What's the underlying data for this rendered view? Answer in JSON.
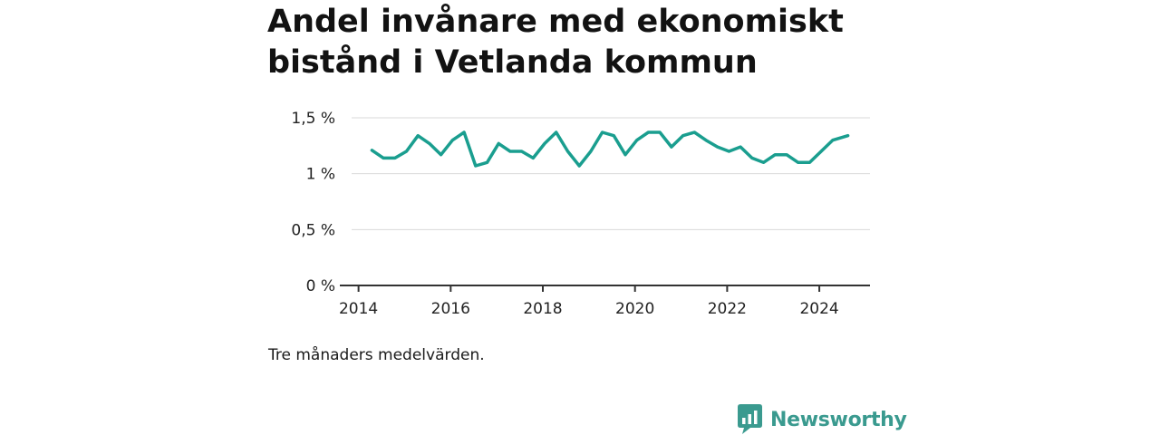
{
  "title": "Andel invånare med ekonomiskt bistånd i Vetlanda kommun",
  "caption": "Tre månaders medelvärden.",
  "brand": {
    "name": "Newsworthy",
    "color": "#3a9a8f"
  },
  "colors": {
    "line": "#1a9e8f",
    "grid": "#d9d9d9",
    "axis": "#333333"
  },
  "chart_data": {
    "type": "line",
    "title": "Andel invånare med ekonomiskt bistånd i Vetlanda kommun",
    "xlabel": "",
    "ylabel": "",
    "xlim": [
      2013.85,
      2025.1
    ],
    "ylim": [
      0,
      1.5
    ],
    "x_ticks": [
      {
        "value": 2014,
        "label": "2014"
      },
      {
        "value": 2016,
        "label": "2016"
      },
      {
        "value": 2018,
        "label": "2018"
      },
      {
        "value": 2020,
        "label": "2020"
      },
      {
        "value": 2022,
        "label": "2022"
      },
      {
        "value": 2024,
        "label": "2024"
      }
    ],
    "y_ticks": [
      {
        "value": 0,
        "label": "0 %"
      },
      {
        "value": 0.5,
        "label": "0,5 %"
      },
      {
        "value": 1,
        "label": "1 %"
      },
      {
        "value": 1.5,
        "label": "1,5 %"
      }
    ],
    "grid": true,
    "legend": "none",
    "series": [
      {
        "x": [
          2014.29,
          2014.54,
          2014.79,
          2015.04,
          2015.29,
          2015.54,
          2015.79,
          2016.04,
          2016.29,
          2016.54,
          2016.79,
          2017.04,
          2017.29,
          2017.54,
          2017.79,
          2018.04,
          2018.29,
          2018.54,
          2018.79,
          2019.04,
          2019.29,
          2019.54,
          2019.79,
          2020.04,
          2020.29,
          2020.54,
          2020.79,
          2021.04,
          2021.29,
          2021.54,
          2021.79,
          2022.04,
          2022.29,
          2022.54,
          2022.79,
          2023.04,
          2023.29,
          2023.54,
          2023.79,
          2024.04,
          2024.29,
          2024.62
        ],
        "values": [
          1.21,
          1.14,
          1.14,
          1.2,
          1.34,
          1.27,
          1.17,
          1.3,
          1.37,
          1.07,
          1.1,
          1.27,
          1.2,
          1.2,
          1.14,
          1.27,
          1.37,
          1.2,
          1.07,
          1.2,
          1.37,
          1.34,
          1.17,
          1.3,
          1.37,
          1.37,
          1.24,
          1.34,
          1.37,
          1.3,
          1.24,
          1.2,
          1.24,
          1.14,
          1.1,
          1.17,
          1.17,
          1.1,
          1.1,
          1.2,
          1.3,
          1.34
        ]
      }
    ]
  }
}
